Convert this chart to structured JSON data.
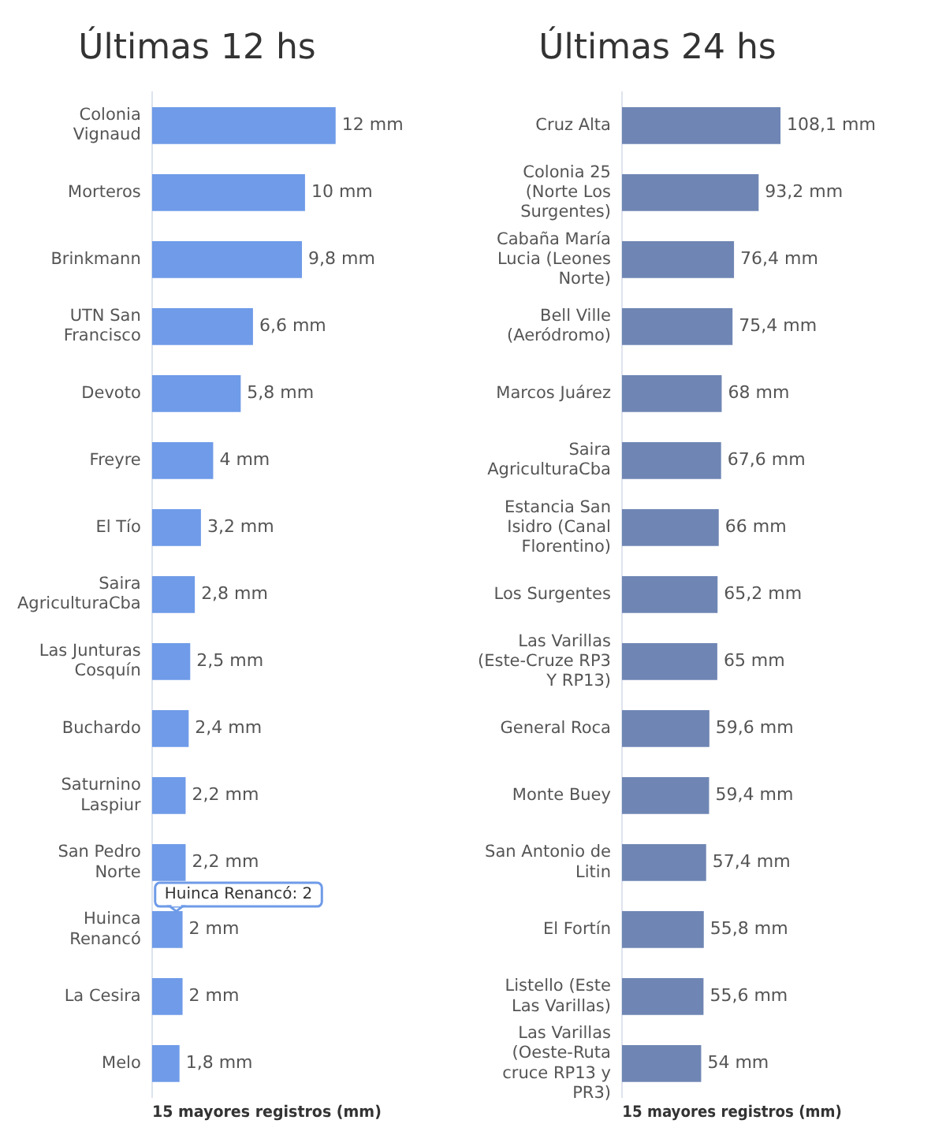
{
  "chart_data": [
    {
      "type": "bar",
      "orientation": "horizontal",
      "title": "Últimas 12 hs",
      "xlabel": "15 mayores registros (mm)",
      "tick_labels": "y",
      "grid": false,
      "legend": false,
      "categories": [
        "Colonia Vignaud",
        "Morteros",
        "Brinkmann",
        "UTN San Francisco",
        "Devoto",
        "Freyre",
        "El Tío",
        "Saira AgriculturaCba",
        "Las Junturas Cosquín",
        "Buchardo",
        "Saturnino Laspiur",
        "San Pedro Norte",
        "Huinca Renancó",
        "La Cesira",
        "Melo"
      ],
      "values": [
        12,
        10,
        9.8,
        6.6,
        5.8,
        4,
        3.2,
        2.8,
        2.5,
        2.4,
        2.2,
        2.2,
        2,
        2,
        1.8
      ],
      "value_labels": [
        "12 mm",
        "10 mm",
        "9,8 mm",
        "6,6 mm",
        "5,8 mm",
        "4 mm",
        "3,2 mm",
        "2,8 mm",
        "2,5 mm",
        "2,4 mm",
        "2,2 mm",
        "2,2 mm",
        "2 mm",
        "2 mm",
        "1,8 mm"
      ],
      "color": "#6f9be8",
      "annotations": [
        {
          "text": "Huinca Renancó: 2",
          "x": 2,
          "y": "Huinca Renancó"
        }
      ]
    },
    {
      "type": "bar",
      "orientation": "horizontal",
      "title": "Últimas 24 hs",
      "xlabel": "15 mayores registros (mm)",
      "tick_labels": "y",
      "grid": false,
      "legend": false,
      "categories": [
        "Cruz Alta",
        "Colonia 25 (Norte Los Surgentes)",
        "Cabaña María Lucia (Leones Norte)",
        "Bell Ville (Aeródromo)",
        "Marcos Juárez",
        "Saira AgriculturaCba",
        "Estancia San Isidro (Canal Florentino)",
        "Los Surgentes",
        "Las Varillas (Este-Cruze RP3 Y RP13)",
        "General Roca",
        "Monte Buey",
        "San Antonio de Litin",
        "El Fortín",
        "Listello (Este Las Varillas)",
        "Las Varillas (Oeste-Ruta cruce RP13 y PR3)"
      ],
      "values": [
        108.1,
        93.2,
        76.4,
        75.4,
        68,
        67.6,
        66,
        65.2,
        65,
        59.6,
        59.4,
        57.4,
        55.8,
        55.6,
        54
      ],
      "value_labels": [
        "108,1 mm",
        "93,2 mm",
        "76,4 mm",
        "75,4 mm",
        "68 mm",
        "67,6 mm",
        "66 mm",
        "65,2 mm",
        "65 mm",
        "59,6 mm",
        "59,4 mm",
        "57,4 mm",
        "55,8 mm",
        "55,6 mm",
        "54 mm"
      ],
      "color": "#6f86b4"
    }
  ]
}
